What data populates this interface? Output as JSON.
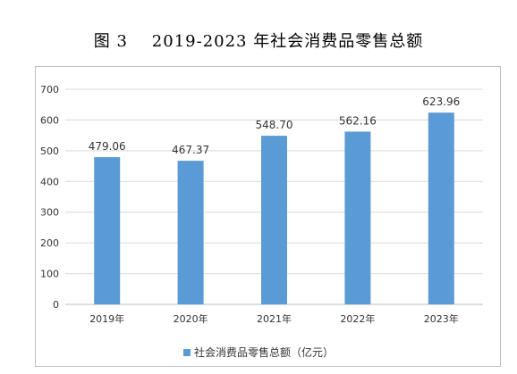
{
  "title": "图 3    2019-2023 年社会消费品零售总额",
  "chart_data": {
    "type": "bar",
    "categories": [
      "2019年",
      "2020年",
      "2021年",
      "2022年",
      "2023年"
    ],
    "series": [
      {
        "name": "社会消费品零售总额（亿元）",
        "values": [
          479.06,
          467.37,
          548.7,
          562.16,
          623.96
        ]
      }
    ],
    "value_labels": [
      "479.06",
      "467.37",
      "548.70",
      "562.16",
      "623.96"
    ],
    "ylim": [
      0,
      700
    ],
    "yticks": [
      "0",
      "100",
      "200",
      "300",
      "400",
      "500",
      "600",
      "700"
    ],
    "grid": true,
    "legend": "bottom-center",
    "bar_color": "#5b9bd5"
  }
}
